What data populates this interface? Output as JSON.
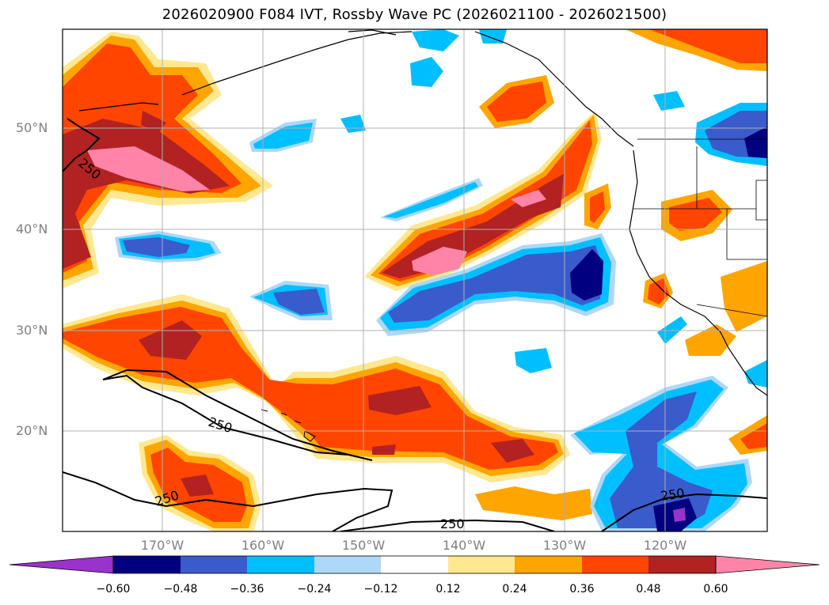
{
  "title": "2026020900 F084 IVT, Rossby Wave PC (2026021100 - 2026021500)",
  "lat_ticks": [
    "50°N",
    "40°N",
    "30°N",
    "20°N"
  ],
  "lon_ticks": [
    "170°W",
    "160°W",
    "150°W",
    "140°W",
    "130°W",
    "120°W"
  ],
  "contour_labels": [
    "250",
    "250",
    "250",
    "250",
    "250"
  ],
  "colorbar": {
    "labels": [
      "−0.60",
      "−0.48",
      "−0.36",
      "−0.24",
      "−0.12",
      "0.12",
      "0.24",
      "0.36",
      "0.48",
      "0.60"
    ],
    "colors": [
      "#9933cc",
      "#000080",
      "#3a5bcc",
      "#00bfff",
      "#add8f7",
      "#ffffff",
      "#ffe88f",
      "#ffa500",
      "#ff4500",
      "#b22222",
      "#ff85a8"
    ]
  }
}
